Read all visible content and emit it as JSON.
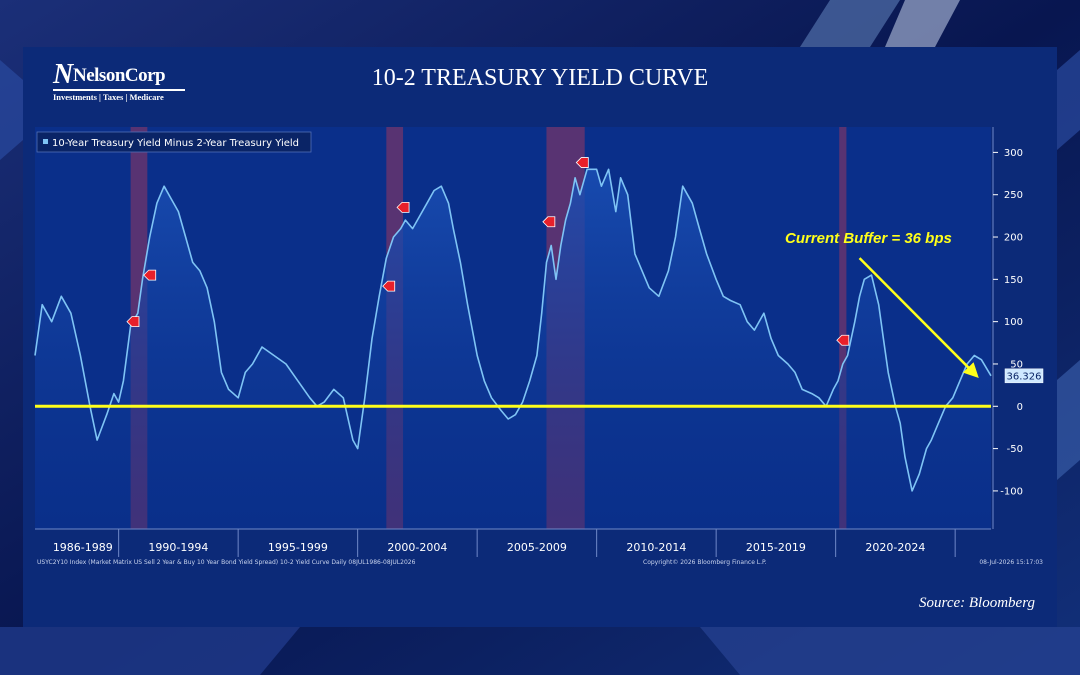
{
  "logo": {
    "name": "NelsonCorp",
    "tagline": "Investments | Taxes | Medicare"
  },
  "source_note": "Source: Bloomberg",
  "footnotes": {
    "left": "USYC2Y10 Index (Market Matrix US Sell 2 Year & Buy 10 Year Bond Yield Spread) 10-2 Yield Curve Daily 08JUL1986-08JUL2026",
    "center": "Copyright© 2026 Bloomberg Finance L.P.",
    "right": "08-Jul-2026 15:17:03"
  },
  "chart_data": {
    "type": "line",
    "title": "10-2 TREASURY YIELD CURVE",
    "xlabel": "",
    "ylabel": "",
    "ylim": [
      -145,
      330
    ],
    "xlim": [
      1986.5,
      2026.5
    ],
    "y_ticks": [
      300,
      250,
      200,
      150,
      100,
      50,
      0,
      -50,
      -100
    ],
    "x_tick_labels": [
      "1986-1989",
      "1990-1994",
      "1995-1999",
      "2000-2004",
      "2005-2009",
      "2010-2014",
      "2015-2019",
      "2020-2024"
    ],
    "x_tick_positions": [
      1988.5,
      1992.5,
      1997.5,
      2002.5,
      2007.5,
      2012.5,
      2017.5,
      2022.5
    ],
    "x_separators": [
      1990,
      1995,
      2000,
      2005,
      2010,
      2015,
      2020,
      2025
    ],
    "legend": {
      "position": "top-left",
      "entries": [
        "10-Year Treasury Yield Minus 2-Year Treasury Yield"
      ]
    },
    "series": [
      {
        "name": "10-Year Treasury Yield Minus 2-Year Treasury Yield",
        "color": "#7fc4f5",
        "x": [
          1986.5,
          1986.8,
          1987.2,
          1987.6,
          1988.0,
          1988.4,
          1988.8,
          1989.1,
          1989.5,
          1989.8,
          1990.0,
          1990.2,
          1990.5,
          1990.8,
          1991.0,
          1991.3,
          1991.6,
          1991.9,
          1992.2,
          1992.5,
          1992.8,
          1993.1,
          1993.4,
          1993.7,
          1994.0,
          1994.3,
          1994.6,
          1995.0,
          1995.3,
          1995.6,
          1996.0,
          1996.5,
          1997.0,
          1997.5,
          1998.0,
          1998.3,
          1998.6,
          1999.0,
          1999.4,
          1999.8,
          2000.0,
          2000.3,
          2000.6,
          2000.9,
          2001.2,
          2001.5,
          2001.8,
          2002.0,
          2002.3,
          2002.6,
          2002.9,
          2003.2,
          2003.5,
          2003.8,
          2004.0,
          2004.3,
          2004.6,
          2005.0,
          2005.3,
          2005.6,
          2006.0,
          2006.3,
          2006.6,
          2006.9,
          2007.2,
          2007.5,
          2007.7,
          2007.9,
          2008.1,
          2008.3,
          2008.5,
          2008.7,
          2008.9,
          2009.1,
          2009.3,
          2009.6,
          2010.0,
          2010.2,
          2010.5,
          2010.8,
          2011.0,
          2011.3,
          2011.6,
          2011.9,
          2012.2,
          2012.6,
          2013.0,
          2013.3,
          2013.6,
          2014.0,
          2014.3,
          2014.6,
          2015.0,
          2015.3,
          2015.6,
          2016.0,
          2016.3,
          2016.6,
          2017.0,
          2017.3,
          2017.6,
          2018.0,
          2018.3,
          2018.6,
          2019.0,
          2019.3,
          2019.6,
          2019.9,
          2020.1,
          2020.3,
          2020.5,
          2020.8,
          2021.0,
          2021.2,
          2021.5,
          2021.8,
          2022.0,
          2022.2,
          2022.5,
          2022.7,
          2022.9,
          2023.2,
          2023.5,
          2023.8,
          2024.0,
          2024.3,
          2024.6,
          2024.9,
          2025.2,
          2025.5,
          2025.8,
          2026.1,
          2026.5
        ],
        "y": [
          60,
          120,
          100,
          130,
          110,
          60,
          0,
          -40,
          -10,
          15,
          5,
          30,
          95,
          110,
          150,
          200,
          240,
          260,
          245,
          230,
          200,
          170,
          160,
          140,
          100,
          40,
          20,
          10,
          40,
          50,
          70,
          60,
          50,
          30,
          10,
          0,
          5,
          20,
          10,
          -40,
          -50,
          10,
          80,
          130,
          175,
          200,
          210,
          220,
          210,
          225,
          240,
          255,
          260,
          240,
          210,
          170,
          120,
          60,
          30,
          10,
          -5,
          -15,
          -10,
          5,
          30,
          60,
          110,
          170,
          190,
          150,
          190,
          220,
          240,
          270,
          250,
          280,
          280,
          260,
          280,
          230,
          270,
          250,
          180,
          160,
          140,
          130,
          160,
          200,
          260,
          240,
          210,
          180,
          150,
          130,
          125,
          120,
          100,
          90,
          110,
          80,
          60,
          50,
          40,
          20,
          15,
          10,
          0,
          20,
          30,
          50,
          60,
          100,
          130,
          150,
          155,
          120,
          80,
          40,
          0,
          -20,
          -60,
          -100,
          -80,
          -50,
          -40,
          -20,
          0,
          10,
          30,
          50,
          60,
          55,
          36
        ]
      }
    ],
    "recession_bands": [
      [
        1990.5,
        1991.2
      ],
      [
        2001.2,
        2001.9
      ],
      [
        2007.9,
        2009.5
      ],
      [
        2020.15,
        2020.45
      ]
    ],
    "reference_line": {
      "y": 0,
      "color": "#ffff1a"
    },
    "markers": [
      {
        "x": 1990.6,
        "y": 100
      },
      {
        "x": 1991.3,
        "y": 155
      },
      {
        "x": 2001.3,
        "y": 142
      },
      {
        "x": 2001.9,
        "y": 235
      },
      {
        "x": 2008.0,
        "y": 218
      },
      {
        "x": 2009.4,
        "y": 288
      },
      {
        "x": 2020.3,
        "y": 78
      }
    ],
    "last_value_label": "36.326",
    "annotation": {
      "text": "Current Buffer = 36 bps",
      "color": "#ffff1a",
      "arrow_from": {
        "x": 2021.0,
        "y": 175
      },
      "arrow_to": {
        "x": 2025.9,
        "y": 36
      }
    },
    "colors": {
      "plot_background": "#0a2f8a",
      "area_fill_top": "#1a4fb5",
      "axis_text": "#ffffff",
      "recession_band": "#b83a55",
      "marker": "#e8202a"
    }
  }
}
